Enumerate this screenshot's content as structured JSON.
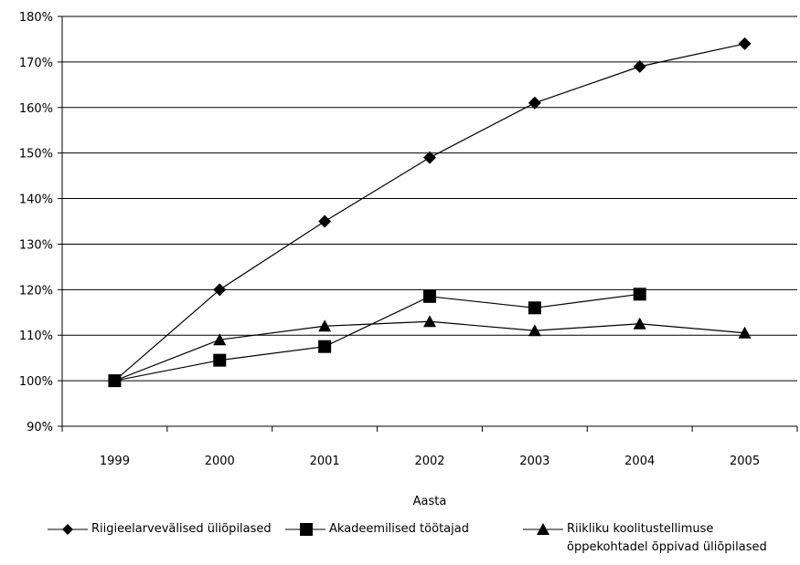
{
  "chart_data": {
    "type": "line",
    "title": "",
    "xlabel": "Aasta",
    "ylabel": "",
    "categories": [
      "1999",
      "2000",
      "2001",
      "2002",
      "2003",
      "2004",
      "2005"
    ],
    "ylim": [
      90,
      180
    ],
    "yticks": [
      "90%",
      "100%",
      "110%",
      "120%",
      "130%",
      "140%",
      "150%",
      "160%",
      "170%",
      "180%"
    ],
    "grid": "horizontal",
    "legend_position": "bottom",
    "series": [
      {
        "name": "Riigieelarvevälised üliõpilased",
        "marker": "diamond",
        "values": [
          100,
          120,
          135,
          149,
          161,
          169,
          174
        ]
      },
      {
        "name": "Akadeemilised töötajad",
        "marker": "square",
        "values": [
          100,
          104.5,
          107.5,
          118.5,
          116,
          119,
          null
        ]
      },
      {
        "name": "Riikliku koolitustellimuse\nõppekohtadel õppivad üliõpilased",
        "marker": "triangle",
        "values": [
          100,
          109,
          112,
          113,
          111,
          112.5,
          110.5
        ]
      }
    ],
    "colors": {
      "line": "#000000",
      "grid": "#000000"
    }
  }
}
